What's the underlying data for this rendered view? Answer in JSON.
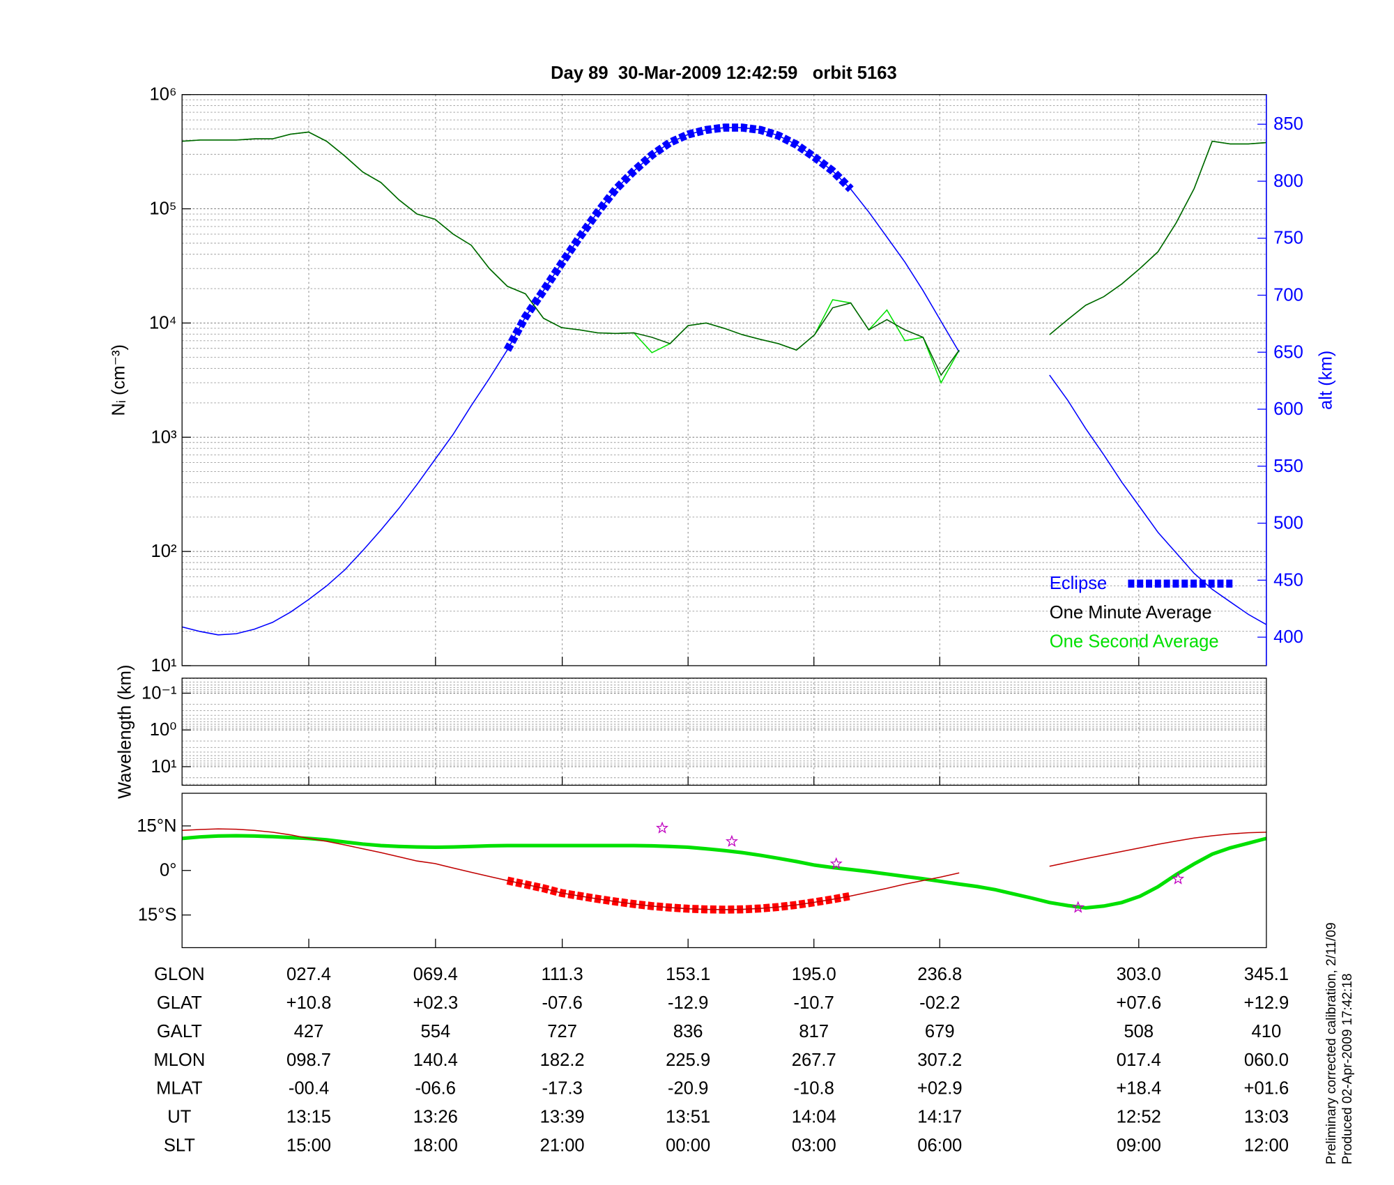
{
  "chart_data": [
    {
      "type": "line",
      "title": "Day 89  30-Mar-2009 12:42:59   orbit 5163",
      "ylabel": "Nᵢ (cm⁻³)",
      "y2label": "alt (km)",
      "log": true,
      "grid": true,
      "legend": "lower right",
      "ylim": [
        10,
        1000000
      ],
      "yticks": [
        {
          "value": 10,
          "label": "10¹"
        },
        {
          "value": 100,
          "label": "10²"
        },
        {
          "value": 1000,
          "label": "10³"
        },
        {
          "value": 10000,
          "label": "10⁴"
        },
        {
          "value": 100000,
          "label": "10⁵"
        },
        {
          "value": 1000000,
          "label": "10⁶"
        }
      ],
      "y2lim": [
        375,
        876
      ],
      "y2ticks": [
        400,
        450,
        500,
        550,
        600,
        650,
        700,
        750,
        800,
        850
      ],
      "y2color": "#0000ff",
      "series": [
        {
          "name": "Eclipse",
          "color": "#0000ff",
          "axis": "y2",
          "style": "dashed-thick",
          "values": [
            null,
            null,
            null,
            null,
            null,
            null,
            null,
            null,
            null,
            null,
            null,
            null,
            null,
            null,
            null,
            null,
            null,
            null,
            652,
            681,
            704,
            728,
            751,
            773,
            793,
            809,
            823,
            834,
            841,
            845,
            847,
            847,
            845,
            840,
            832,
            821,
            809,
            793,
            null,
            null,
            null,
            null,
            null,
            null,
            null,
            null,
            null,
            null,
            null,
            null,
            null,
            null,
            null,
            null,
            null,
            null,
            null,
            null,
            null,
            null,
            null
          ]
        },
        {
          "name": "One Minute Average",
          "color": "#006000",
          "legend_color": "#000000",
          "style": "thin",
          "values": [
            390000,
            400000,
            400000,
            400000,
            410000,
            410000,
            450000,
            470000,
            390000,
            290000,
            210000,
            170000,
            120000,
            90000,
            81000,
            60000,
            48000,
            30000,
            21000,
            18000,
            11000,
            9100,
            8700,
            8200,
            8100,
            8200,
            7500,
            6600,
            9500,
            10000,
            9000,
            7900,
            7200,
            6600,
            5800,
            7900,
            13600,
            15000,
            8700,
            10700,
            8700,
            7500,
            3500,
            5800,
            null,
            null,
            null,
            null,
            7900,
            10700,
            14300,
            17000,
            22000,
            30000,
            42000,
            75000,
            150000,
            390000,
            370000,
            370000,
            380000
          ]
        },
        {
          "name": "One Second Average",
          "color": "#00e000",
          "style": "thin",
          "values": [
            390000,
            400000,
            400000,
            400000,
            410000,
            410000,
            450000,
            470000,
            390000,
            290000,
            210000,
            170000,
            120000,
            90000,
            81000,
            60000,
            48000,
            30000,
            21000,
            18000,
            11000,
            9100,
            8700,
            8200,
            8100,
            8200,
            5500,
            6600,
            9500,
            10000,
            9000,
            7900,
            7200,
            6600,
            5800,
            7900,
            16000,
            15000,
            8700,
            13000,
            7000,
            7500,
            3000,
            5800,
            null,
            null,
            null,
            null,
            7900,
            10700,
            14300,
            17000,
            22000,
            30000,
            42000,
            75000,
            150000,
            390000,
            370000,
            370000,
            380000
          ]
        },
        {
          "color": "#0000ff",
          "axis": "y2",
          "style": "thin",
          "values": [
            409,
            405,
            402,
            403,
            407,
            413,
            422,
            433,
            445,
            459,
            476,
            494,
            513,
            534,
            556,
            578,
            603,
            627,
            652,
            681,
            704,
            728,
            751,
            773,
            793,
            809,
            823,
            834,
            841,
            845,
            847,
            847,
            845,
            840,
            832,
            821,
            809,
            793,
            773,
            751,
            729,
            704,
            677,
            650,
            null,
            null,
            null,
            null,
            630,
            608,
            583,
            560,
            536,
            514,
            492,
            474,
            456,
            442,
            431,
            420,
            411
          ]
        }
      ]
    },
    {
      "type": "line",
      "ylabel": "Wavelength (km)",
      "log": true,
      "y_reversed": true,
      "grid": true,
      "ylim": [
        0.039,
        32
      ],
      "yticks": [
        {
          "value": 0.1,
          "label": "10⁻¹"
        },
        {
          "value": 1,
          "label": "10⁰"
        },
        {
          "value": 10,
          "label": "10¹"
        }
      ],
      "series": []
    },
    {
      "type": "line",
      "grid": false,
      "ylim": [
        -26,
        26
      ],
      "yticks": [
        {
          "value": 15,
          "label": "15°N"
        },
        {
          "value": 0,
          "label": "0°"
        },
        {
          "value": -15,
          "label": "15°S"
        }
      ],
      "series": [
        {
          "color": "#c00000",
          "style": "thin",
          "values": [
            13.5,
            13.8,
            14.0,
            13.9,
            13.5,
            12.9,
            12.0,
            10.8,
            9.8,
            8.6,
            7.3,
            6.0,
            4.6,
            3.2,
            2.3,
            0.8,
            -0.6,
            -2.0,
            -3.4,
            -4.7,
            -6.0,
            -7.6,
            -8.6,
            -9.6,
            -10.5,
            -11.3,
            -12.0,
            -12.5,
            -12.9,
            -13.1,
            -13.2,
            -13.1,
            -12.8,
            -12.3,
            -11.6,
            -10.7,
            -9.7,
            -8.6,
            -7.3,
            -6.0,
            -4.6,
            -3.4,
            -2.2,
            -0.8,
            null,
            null,
            null,
            null,
            1.4,
            2.7,
            4.0,
            5.2,
            6.4,
            7.6,
            8.8,
            9.9,
            10.9,
            11.7,
            12.3,
            12.7,
            12.9
          ]
        },
        {
          "color": "#ff0000",
          "style": "dashed-thick",
          "values": [
            null,
            null,
            null,
            null,
            null,
            null,
            null,
            null,
            null,
            null,
            null,
            null,
            null,
            null,
            null,
            null,
            null,
            null,
            -3.4,
            -4.7,
            -6.0,
            -7.6,
            -8.6,
            -9.6,
            -10.5,
            -11.3,
            -12.0,
            -12.5,
            -12.9,
            -13.1,
            -13.2,
            -13.1,
            -12.8,
            -12.3,
            -11.6,
            -10.7,
            -9.7,
            -8.6,
            null,
            null,
            null,
            null,
            null,
            null,
            null,
            null,
            null,
            null,
            null,
            null,
            null,
            null,
            null,
            null,
            null,
            null,
            null,
            null,
            null,
            null,
            null
          ]
        },
        {
          "color": "#00e000",
          "style": "thick",
          "values": [
            10.8,
            11.3,
            11.6,
            11.7,
            11.6,
            11.4,
            11.1,
            10.8,
            10.3,
            9.6,
            8.9,
            8.4,
            8.1,
            7.9,
            7.8,
            7.9,
            8.1,
            8.3,
            8.4,
            8.4,
            8.4,
            8.4,
            8.4,
            8.4,
            8.4,
            8.4,
            8.3,
            8.1,
            7.8,
            7.3,
            6.7,
            6.0,
            5.1,
            4.1,
            3.0,
            1.8,
            1.0,
            0.3,
            -0.4,
            -1.2,
            -2.0,
            -2.8,
            -3.7,
            -4.6,
            -5.4,
            -6.5,
            -7.9,
            -9.3,
            -10.8,
            -11.8,
            -12.6,
            -12.0,
            -10.8,
            -8.7,
            -5.5,
            -1.4,
            2.2,
            5.5,
            7.6,
            9.2,
            10.8
          ]
        }
      ]
    }
  ],
  "table": {
    "rows": [
      {
        "label": "GLON",
        "values": [
          "027.4",
          "069.4",
          "111.3",
          "153.1",
          "195.0",
          "236.8",
          "303.0",
          "345.1"
        ]
      },
      {
        "label": "GLAT",
        "values": [
          "+10.8",
          "+02.3",
          "-07.6",
          "-12.9",
          "-10.7",
          "-02.2",
          "+07.6",
          "+12.9"
        ]
      },
      {
        "label": "GALT",
        "values": [
          "427",
          "554",
          "727",
          "836",
          "817",
          "679",
          "508",
          "410"
        ]
      },
      {
        "label": "MLON",
        "values": [
          "098.7",
          "140.4",
          "182.2",
          "225.9",
          "267.7",
          "307.2",
          "017.4",
          "060.0"
        ]
      },
      {
        "label": "MLAT",
        "values": [
          "-00.4",
          "-06.6",
          "-17.3",
          "-20.9",
          "-10.8",
          "+02.9",
          "+18.4",
          "+01.6"
        ]
      },
      {
        "label": "UT",
        "values": [
          "13:15",
          "13:26",
          "13:39",
          "13:51",
          "14:04",
          "14:17",
          "12:52",
          "13:03"
        ]
      },
      {
        "label": "SLT",
        "values": [
          "15:00",
          "18:00",
          "21:00",
          "00:00",
          "03:00",
          "06:00",
          "09:00",
          "12:00"
        ]
      }
    ]
  },
  "notes": [
    "Preliminary corrected calibration, 2/11/09",
    "Produced 02-Apr-2009 17:42:18"
  ]
}
